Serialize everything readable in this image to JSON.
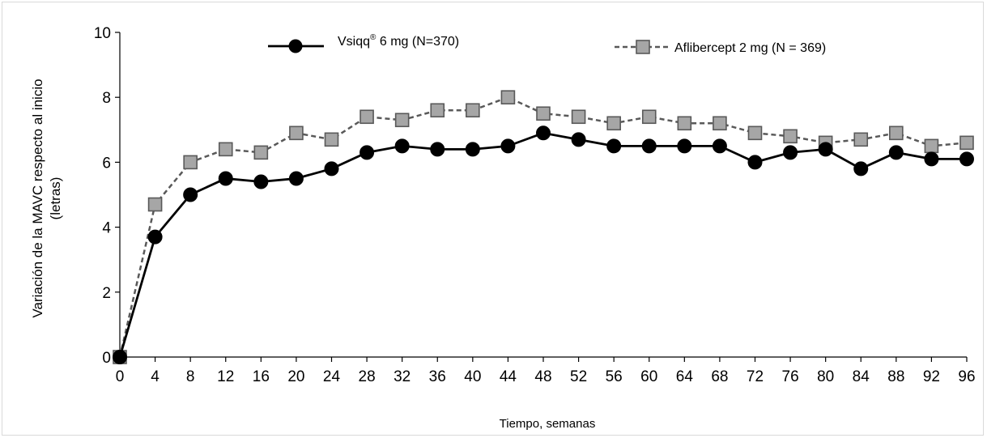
{
  "chart_data": {
    "type": "line",
    "title": "",
    "xlabel": "Tiempo, semanas",
    "ylabel_line1": "Variación de la MAVC respecto al inicio",
    "ylabel_line2": "(letras)",
    "x": [
      0,
      4,
      8,
      12,
      16,
      20,
      24,
      28,
      32,
      36,
      40,
      44,
      48,
      52,
      56,
      60,
      64,
      68,
      72,
      76,
      80,
      84,
      88,
      92,
      96
    ],
    "xlim": [
      0,
      96
    ],
    "ylim": [
      0,
      10
    ],
    "yticks": [
      0,
      2,
      4,
      6,
      8,
      10
    ],
    "grid": false,
    "legend_position": "top",
    "series": [
      {
        "name": "Vsiqq",
        "name_superscript": "®",
        "name_suffix": " 6 mg (N=370)",
        "color": "#000000",
        "marker": "circle",
        "line_style": "solid",
        "values": [
          0,
          3.7,
          5.0,
          5.5,
          5.4,
          5.5,
          5.8,
          6.3,
          6.5,
          6.4,
          6.4,
          6.5,
          6.9,
          6.7,
          6.5,
          6.5,
          6.5,
          6.5,
          6.0,
          6.3,
          6.4,
          5.8,
          6.3,
          6.1,
          6.1
        ]
      },
      {
        "name": "Aflibercept 2 mg (N = 369)",
        "color": "#a6a6a6",
        "line_color": "#595959",
        "marker": "square",
        "line_style": "dashed",
        "values": [
          0,
          4.7,
          6.0,
          6.4,
          6.3,
          6.9,
          6.7,
          7.4,
          7.3,
          7.6,
          7.6,
          8.0,
          7.5,
          7.4,
          7.2,
          7.4,
          7.2,
          7.2,
          6.9,
          6.8,
          6.6,
          6.7,
          6.9,
          6.5,
          6.6
        ]
      }
    ]
  }
}
